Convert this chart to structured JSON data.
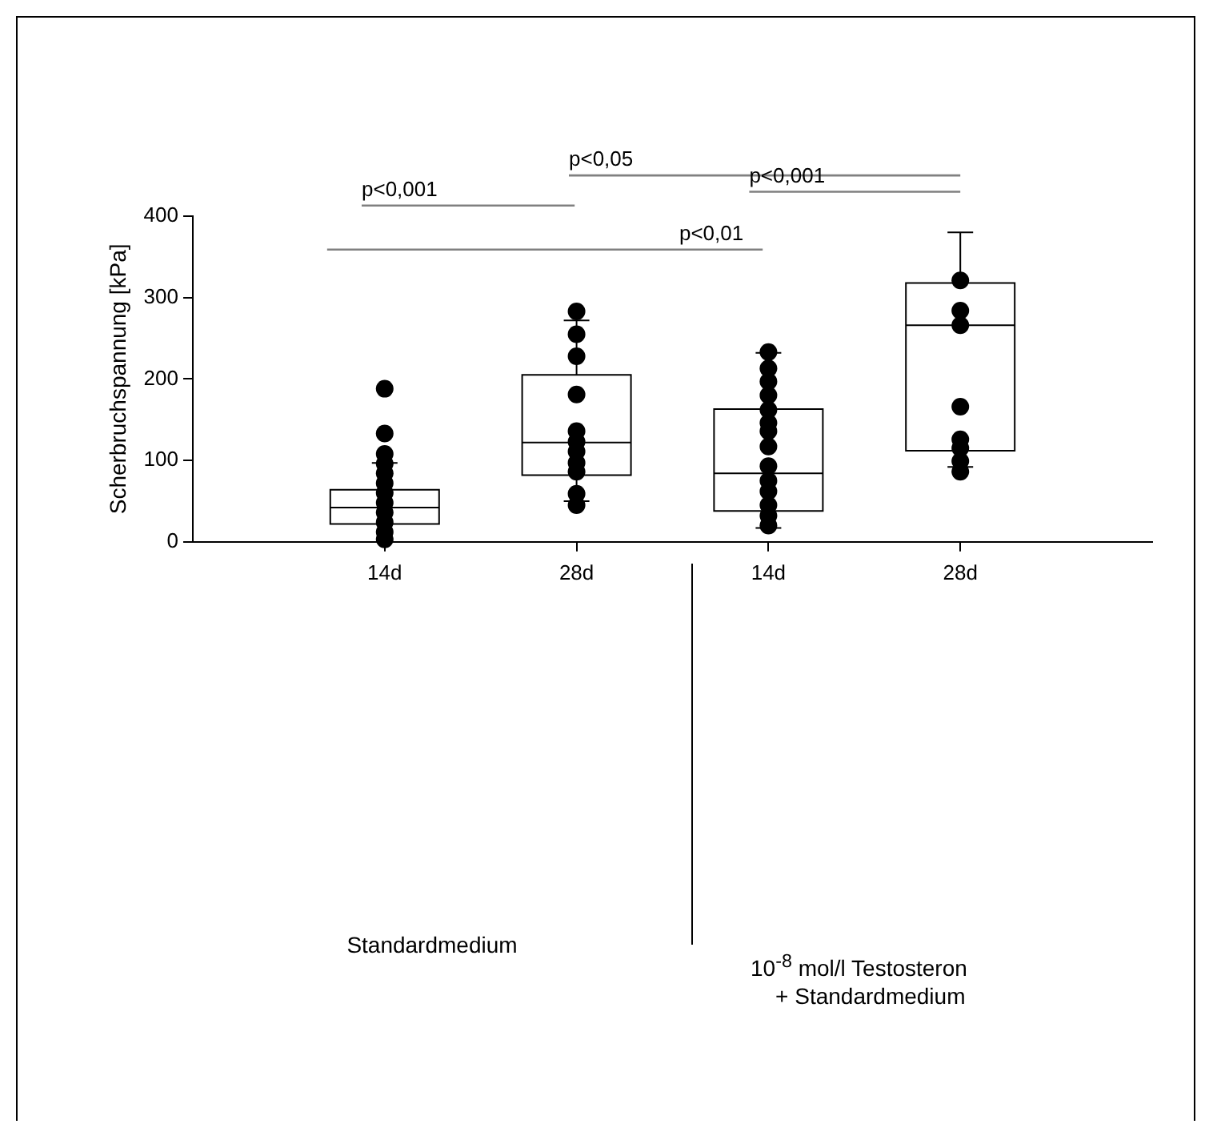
{
  "chart_data": {
    "type": "box",
    "ylabel": "Scherbruchspannung [kPa]",
    "categories": [
      "14d",
      "28d",
      "14d",
      "28d"
    ],
    "boxes": [
      {
        "low": null,
        "q1": 22,
        "median": 42,
        "q3": 64,
        "high": 97,
        "outliers": [
          188,
          133,
          108,
          96,
          84,
          72,
          60,
          48,
          36,
          24,
          12,
          3
        ]
      },
      {
        "low": 50,
        "q1": 82,
        "median": 122,
        "q3": 205,
        "high": 272,
        "outliers": [
          283,
          255,
          228,
          181,
          136,
          123,
          111,
          97,
          86,
          59,
          45
        ]
      },
      {
        "low": 17,
        "q1": 38,
        "median": 84,
        "q3": 163,
        "high": 232,
        "outliers": [
          233,
          213,
          197,
          180,
          162,
          146,
          136,
          117,
          93,
          75,
          62,
          45,
          32,
          20
        ]
      },
      {
        "low": 92,
        "q1": 112,
        "median": 266,
        "q3": 318,
        "high": 380,
        "outliers": [
          321,
          284,
          266,
          166,
          126,
          115,
          99,
          86
        ]
      }
    ],
    "marker": "circle",
    "ylim": [
      0,
      400
    ],
    "yticks": [
      0,
      100,
      200,
      300,
      400
    ],
    "annotations": [
      "p<0,001",
      "p<0,05",
      "p<0,001",
      "p<0,01",
      "Standardmedium",
      "10$^{-8}$ mol/l Testosteron\n+ Standardmedium"
    ]
  }
}
